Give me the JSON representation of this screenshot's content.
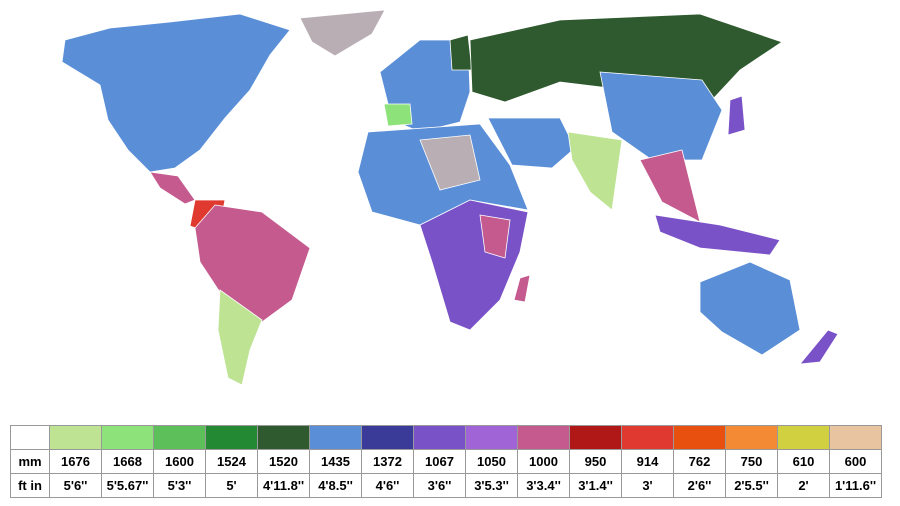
{
  "legend": {
    "row_labels": [
      "mm",
      "ft in"
    ],
    "entries": [
      {
        "color": "#bde393",
        "mm": 1676,
        "ft_in": "5'6''"
      },
      {
        "color": "#8ee27a",
        "mm": 1668,
        "ft_in": "5'5.67''"
      },
      {
        "color": "#5cbf5a",
        "mm": 1600,
        "ft_in": "5'3''"
      },
      {
        "color": "#238a33",
        "mm": 1524,
        "ft_in": "5'"
      },
      {
        "color": "#2f5a2f",
        "mm": 1520,
        "ft_in": "4'11.8''"
      },
      {
        "color": "#5a8fd8",
        "mm": 1435,
        "ft_in": "4'8.5''"
      },
      {
        "color": "#3a3a98",
        "mm": 1372,
        "ft_in": "4'6''"
      },
      {
        "color": "#7a52c8",
        "mm": 1067,
        "ft_in": "3'6''"
      },
      {
        "color": "#a064d6",
        "mm": 1050,
        "ft_in": "3'5.3''"
      },
      {
        "color": "#c45a8e",
        "mm": 1000,
        "ft_in": "3'3.4''"
      },
      {
        "color": "#b01818",
        "mm": 950,
        "ft_in": "3'1.4''"
      },
      {
        "color": "#e03a30",
        "mm": 914,
        "ft_in": "3'"
      },
      {
        "color": "#e85010",
        "mm": 762,
        "ft_in": "2'6''"
      },
      {
        "color": "#f58a35",
        "mm": 750,
        "ft_in": "2'5.5''"
      },
      {
        "color": "#d0d040",
        "mm": 610,
        "ft_in": "2'"
      },
      {
        "color": "#e8c4a0",
        "mm": 600,
        "ft_in": "1'11.6''"
      }
    ]
  }
}
